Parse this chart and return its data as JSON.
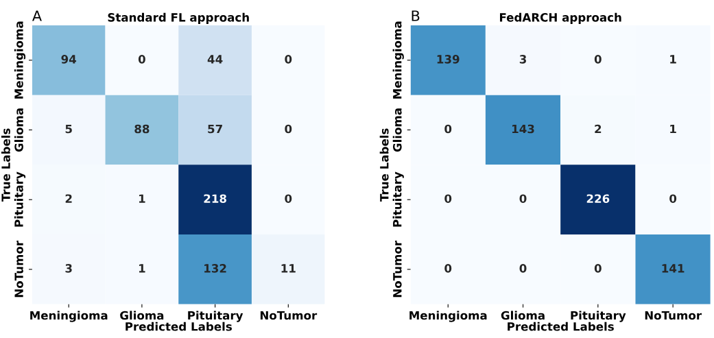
{
  "chart_data": [
    {
      "type": "heatmap",
      "title": "Standard FL approach",
      "xlabel": "Predicted Labels",
      "ylabel": "True Labels",
      "annotations": [
        "A"
      ],
      "data_labels": true,
      "categories": [
        "Meningioma",
        "Glioma",
        "Pituitary",
        "NoTumor"
      ],
      "y_categories": [
        "Meningioma",
        "Glioma",
        "Pituitary",
        "NoTumor"
      ],
      "cells": [
        [
          94,
          0,
          44,
          0
        ],
        [
          5,
          88,
          57,
          0
        ],
        [
          2,
          1,
          218,
          0
        ],
        [
          3,
          1,
          132,
          11
        ]
      ]
    },
    {
      "type": "heatmap",
      "title": "FedARCH approach",
      "xlabel": "Predicted Labels",
      "ylabel": "True Labels",
      "annotations": [
        "B"
      ],
      "data_labels": true,
      "categories": [
        "Meningioma",
        "Glioma",
        "Pituitary",
        "NoTumor"
      ],
      "y_categories": [
        "Meningioma",
        "Glioma",
        "Pituitary",
        "NoTumor"
      ],
      "cells": [
        [
          139,
          3,
          0,
          1
        ],
        [
          0,
          143,
          2,
          1
        ],
        [
          0,
          0,
          226,
          0
        ],
        [
          0,
          0,
          0,
          141
        ]
      ]
    }
  ]
}
